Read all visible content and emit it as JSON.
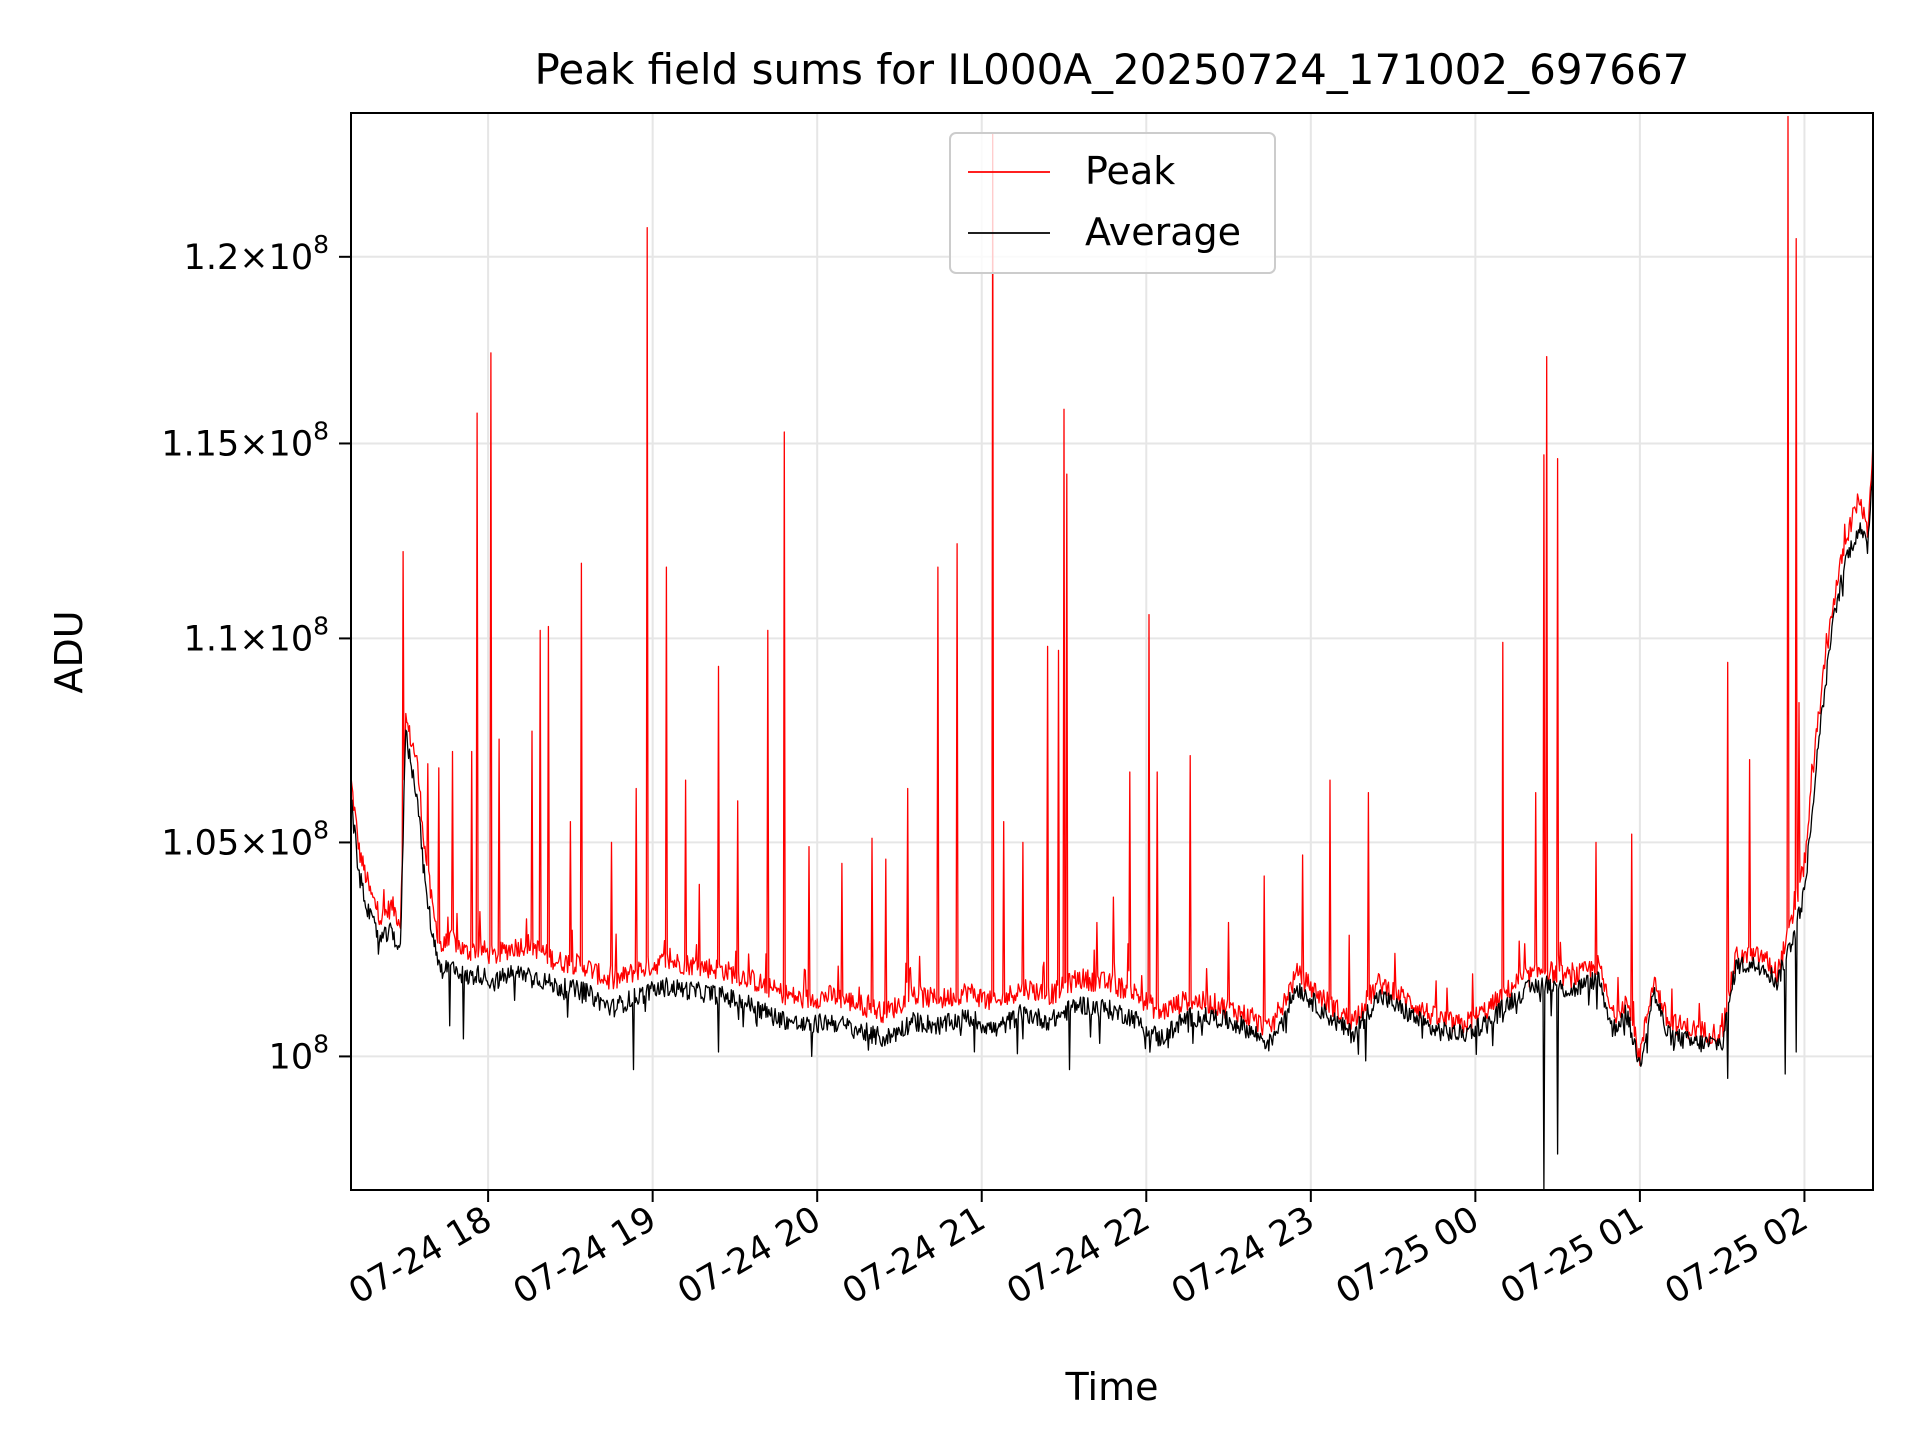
{
  "chart_data": {
    "type": "line",
    "title": "Peak field sums for IL000A_20250724_171002_697667",
    "xlabel": "Time",
    "ylabel": "ADU",
    "x_range": [
      "2025-07-24T17:10:00",
      "2025-07-25T02:25:00"
    ],
    "ylim": [
      97000000.0,
      124000000.0
    ],
    "y_scale": "log",
    "grid": true,
    "legend_position": "top-center",
    "x_ticks": [
      {
        "value": "2025-07-24T18:00:00",
        "label": "07-24 18"
      },
      {
        "value": "2025-07-24T19:00:00",
        "label": "07-24 19"
      },
      {
        "value": "2025-07-24T20:00:00",
        "label": "07-24 20"
      },
      {
        "value": "2025-07-24T21:00:00",
        "label": "07-24 21"
      },
      {
        "value": "2025-07-24T22:00:00",
        "label": "07-24 22"
      },
      {
        "value": "2025-07-24T23:00:00",
        "label": "07-24 23"
      },
      {
        "value": "2025-07-25T00:00:00",
        "label": "07-25 00"
      },
      {
        "value": "2025-07-25T01:00:00",
        "label": "07-25 01"
      },
      {
        "value": "2025-07-25T02:00:00",
        "label": "07-25 02"
      }
    ],
    "y_ticks": [
      {
        "value": 100000000.0,
        "mantissa": "",
        "exponent": "8"
      },
      {
        "value": 105000000.0,
        "mantissa": "1.05",
        "exponent": "8"
      },
      {
        "value": 110000000.0,
        "mantissa": "1.1",
        "exponent": "8"
      },
      {
        "value": 115000000.0,
        "mantissa": "1.15",
        "exponent": "8"
      },
      {
        "value": 120000000.0,
        "mantissa": "1.2",
        "exponent": "8"
      }
    ],
    "series": [
      {
        "name": "Peak",
        "color": "#ff0000",
        "points": [
          [
            "2025-07-24T17:10:00",
            106500000
          ],
          [
            "2025-07-24T17:13:00",
            104800000
          ],
          [
            "2025-07-24T17:17:00",
            103800000
          ],
          [
            "2025-07-24T17:21:00",
            103200000
          ],
          [
            "2025-07-24T17:25:00",
            103500000
          ],
          [
            "2025-07-24T17:28:00",
            103100000
          ],
          [
            "2025-07-24T17:30:00",
            108000000
          ],
          [
            "2025-07-24T17:31:00",
            107700000
          ],
          [
            "2025-07-24T17:34:00",
            107000000
          ],
          [
            "2025-07-24T17:37:00",
            104800000
          ],
          [
            "2025-07-24T17:40:00",
            103300000
          ],
          [
            "2025-07-24T17:43:00",
            102500000
          ],
          [
            "2025-07-24T17:47:00",
            102700000
          ],
          [
            "2025-07-24T17:52:00",
            102400000
          ],
          [
            "2025-07-24T17:57:00",
            102500000
          ],
          [
            "2025-07-24T18:02:00",
            102300000
          ],
          [
            "2025-07-24T18:08:00",
            102500000
          ],
          [
            "2025-07-24T18:15:00",
            102600000
          ],
          [
            "2025-07-24T18:25:00",
            102200000
          ],
          [
            "2025-07-24T18:35:00",
            102100000
          ],
          [
            "2025-07-24T18:45:00",
            101700000
          ],
          [
            "2025-07-24T18:55:00",
            102000000
          ],
          [
            "2025-07-24T19:05:00",
            102200000
          ],
          [
            "2025-07-24T19:15:00",
            102100000
          ],
          [
            "2025-07-24T19:25:00",
            102000000
          ],
          [
            "2025-07-24T19:35:00",
            101800000
          ],
          [
            "2025-07-24T19:45:00",
            101500000
          ],
          [
            "2025-07-24T19:55:00",
            101300000
          ],
          [
            "2025-07-24T20:05:00",
            101400000
          ],
          [
            "2025-07-24T20:15:00",
            101200000
          ],
          [
            "2025-07-24T20:25:00",
            101000000
          ],
          [
            "2025-07-24T20:35:00",
            101400000
          ],
          [
            "2025-07-24T20:45:00",
            101300000
          ],
          [
            "2025-07-24T20:55:00",
            101500000
          ],
          [
            "2025-07-24T21:05:00",
            101200000
          ],
          [
            "2025-07-24T21:15:00",
            101600000
          ],
          [
            "2025-07-24T21:25:00",
            101400000
          ],
          [
            "2025-07-24T21:35:00",
            101800000
          ],
          [
            "2025-07-24T21:45:00",
            101700000
          ],
          [
            "2025-07-24T21:55:00",
            101500000
          ],
          [
            "2025-07-24T22:05:00",
            101000000
          ],
          [
            "2025-07-24T22:15:00",
            101300000
          ],
          [
            "2025-07-24T22:25:00",
            101200000
          ],
          [
            "2025-07-24T22:35:00",
            101000000
          ],
          [
            "2025-07-24T22:45:00",
            100600000
          ],
          [
            "2025-07-24T22:55:00",
            101900000
          ],
          [
            "2025-07-24T23:05:00",
            101300000
          ],
          [
            "2025-07-24T23:15:00",
            100800000
          ],
          [
            "2025-07-24T23:25:00",
            101700000
          ],
          [
            "2025-07-24T23:35:00",
            101300000
          ],
          [
            "2025-07-24T23:45:00",
            100900000
          ],
          [
            "2025-07-24T23:55:00",
            100700000
          ],
          [
            "2025-07-25T00:05:00",
            101100000
          ],
          [
            "2025-07-25T00:15:00",
            101700000
          ],
          [
            "2025-07-25T00:25:00",
            102000000
          ],
          [
            "2025-07-25T00:35:00",
            101800000
          ],
          [
            "2025-07-25T00:45:00",
            102100000
          ],
          [
            "2025-07-25T00:50:00",
            100900000
          ],
          [
            "2025-07-25T00:55:00",
            101300000
          ],
          [
            "2025-07-25T01:00:00",
            100000000
          ],
          [
            "2025-07-25T01:05:00",
            101800000
          ],
          [
            "2025-07-25T01:10:00",
            100800000
          ],
          [
            "2025-07-25T01:20:00",
            100600000
          ],
          [
            "2025-07-25T01:30:00",
            100500000
          ],
          [
            "2025-07-25T01:35:00",
            102300000
          ],
          [
            "2025-07-25T01:45:00",
            102300000
          ],
          [
            "2025-07-25T01:50:00",
            101900000
          ],
          [
            "2025-07-25T01:55:00",
            103000000
          ],
          [
            "2025-07-25T02:00:00",
            104500000
          ],
          [
            "2025-07-25T02:05:00",
            108000000
          ],
          [
            "2025-07-25T02:10:00",
            110700000
          ],
          [
            "2025-07-25T02:15:00",
            112500000
          ],
          [
            "2025-07-25T02:20:00",
            113600000
          ],
          [
            "2025-07-25T02:23:00",
            112700000
          ],
          [
            "2025-07-25T02:25:00",
            115000000
          ]
        ]
      },
      {
        "name": "Average",
        "color": "#000000",
        "points": [
          [
            "2025-07-24T17:10:00",
            106000000
          ],
          [
            "2025-07-24T17:13:00",
            104200000
          ],
          [
            "2025-07-24T17:17:00",
            103200000
          ],
          [
            "2025-07-24T17:21:00",
            102700000
          ],
          [
            "2025-07-24T17:25:00",
            102900000
          ],
          [
            "2025-07-24T17:28:00",
            102400000
          ],
          [
            "2025-07-24T17:30:00",
            107900000
          ],
          [
            "2025-07-24T17:31:00",
            107200000
          ],
          [
            "2025-07-24T17:34:00",
            106200000
          ],
          [
            "2025-07-24T17:37:00",
            104000000
          ],
          [
            "2025-07-24T17:40:00",
            102700000
          ],
          [
            "2025-07-24T17:43:00",
            102000000
          ],
          [
            "2025-07-24T17:47:00",
            102100000
          ],
          [
            "2025-07-24T17:52:00",
            101800000
          ],
          [
            "2025-07-24T17:57:00",
            101900000
          ],
          [
            "2025-07-24T18:02:00",
            101700000
          ],
          [
            "2025-07-24T18:08:00",
            101900000
          ],
          [
            "2025-07-24T18:15:00",
            101900000
          ],
          [
            "2025-07-24T18:25:00",
            101600000
          ],
          [
            "2025-07-24T18:35:00",
            101500000
          ],
          [
            "2025-07-24T18:45:00",
            101100000
          ],
          [
            "2025-07-24T18:55:00",
            101400000
          ],
          [
            "2025-07-24T19:05:00",
            101600000
          ],
          [
            "2025-07-24T19:15:00",
            101500000
          ],
          [
            "2025-07-24T19:25:00",
            101400000
          ],
          [
            "2025-07-24T19:35:00",
            101200000
          ],
          [
            "2025-07-24T19:45:00",
            100900000
          ],
          [
            "2025-07-24T19:55:00",
            100700000
          ],
          [
            "2025-07-24T20:05:00",
            100800000
          ],
          [
            "2025-07-24T20:15:00",
            100600000
          ],
          [
            "2025-07-24T20:25:00",
            100400000
          ],
          [
            "2025-07-24T20:35:00",
            100800000
          ],
          [
            "2025-07-24T20:45:00",
            100700000
          ],
          [
            "2025-07-24T20:55:00",
            100900000
          ],
          [
            "2025-07-24T21:05:00",
            100600000
          ],
          [
            "2025-07-24T21:15:00",
            101000000
          ],
          [
            "2025-07-24T21:25:00",
            100800000
          ],
          [
            "2025-07-24T21:35:00",
            101200000
          ],
          [
            "2025-07-24T21:45:00",
            101100000
          ],
          [
            "2025-07-24T21:55:00",
            100900000
          ],
          [
            "2025-07-24T22:05:00",
            100400000
          ],
          [
            "2025-07-24T22:15:00",
            100900000
          ],
          [
            "2025-07-24T22:25:00",
            100900000
          ],
          [
            "2025-07-24T22:35:00",
            100700000
          ],
          [
            "2025-07-24T22:45:00",
            100300000
          ],
          [
            "2025-07-24T22:55:00",
            101600000
          ],
          [
            "2025-07-24T23:05:00",
            101000000
          ],
          [
            "2025-07-24T23:15:00",
            100500000
          ],
          [
            "2025-07-24T23:25:00",
            101400000
          ],
          [
            "2025-07-24T23:35:00",
            101000000
          ],
          [
            "2025-07-24T23:45:00",
            100600000
          ],
          [
            "2025-07-24T23:55:00",
            100500000
          ],
          [
            "2025-07-25T00:05:00",
            100800000
          ],
          [
            "2025-07-25T00:15:00",
            101400000
          ],
          [
            "2025-07-25T00:25:00",
            101700000
          ],
          [
            "2025-07-25T00:35:00",
            101500000
          ],
          [
            "2025-07-25T00:45:00",
            101800000
          ],
          [
            "2025-07-25T00:50:00",
            100600000
          ],
          [
            "2025-07-25T00:55:00",
            101000000
          ],
          [
            "2025-07-25T01:00:00",
            99800000
          ],
          [
            "2025-07-25T01:05:00",
            101500000
          ],
          [
            "2025-07-25T01:10:00",
            100500000
          ],
          [
            "2025-07-25T01:20:00",
            100300000
          ],
          [
            "2025-07-25T01:30:00",
            100300000
          ],
          [
            "2025-07-25T01:35:00",
            102100000
          ],
          [
            "2025-07-25T01:45:00",
            102100000
          ],
          [
            "2025-07-25T01:50:00",
            101700000
          ],
          [
            "2025-07-25T01:55:00",
            102600000
          ],
          [
            "2025-07-25T02:00:00",
            103800000
          ],
          [
            "2025-07-25T02:05:00",
            107300000
          ],
          [
            "2025-07-25T02:10:00",
            110200000
          ],
          [
            "2025-07-25T02:15:00",
            112000000
          ],
          [
            "2025-07-25T02:20:00",
            112800000
          ],
          [
            "2025-07-25T02:23:00",
            112300000
          ],
          [
            "2025-07-25T02:25:00",
            114500000
          ]
        ]
      }
    ],
    "peak_spikes": [
      [
        "2025-07-24T17:29:00",
        112200000
      ],
      [
        "2025-07-24T17:38:00",
        106900000
      ],
      [
        "2025-07-24T17:42:00",
        106800000
      ],
      [
        "2025-07-24T17:47:00",
        107200000
      ],
      [
        "2025-07-24T17:54:00",
        107200000
      ],
      [
        "2025-07-24T17:56:00",
        115800000
      ],
      [
        "2025-07-24T18:01:00",
        117400000
      ],
      [
        "2025-07-24T18:04:00",
        107500000
      ],
      [
        "2025-07-24T18:16:00",
        107700000
      ],
      [
        "2025-07-24T18:19:00",
        110200000
      ],
      [
        "2025-07-24T18:22:00",
        110300000
      ],
      [
        "2025-07-24T18:30:00",
        105500000
      ],
      [
        "2025-07-24T18:34:00",
        111900000
      ],
      [
        "2025-07-24T18:45:00",
        105000000
      ],
      [
        "2025-07-24T18:54:00",
        106300000
      ],
      [
        "2025-07-24T18:58:00",
        120800000
      ],
      [
        "2025-07-24T19:05:00",
        111800000
      ],
      [
        "2025-07-24T19:12:00",
        106500000
      ],
      [
        "2025-07-24T19:17:00",
        104000000
      ],
      [
        "2025-07-24T19:24:00",
        109300000
      ],
      [
        "2025-07-24T19:31:00",
        106000000
      ],
      [
        "2025-07-24T19:42:00",
        110200000
      ],
      [
        "2025-07-24T19:48:00",
        115300000
      ],
      [
        "2025-07-24T19:57:00",
        104900000
      ],
      [
        "2025-07-24T20:09:00",
        104500000
      ],
      [
        "2025-07-24T20:20:00",
        105100000
      ],
      [
        "2025-07-24T20:25:00",
        104600000
      ],
      [
        "2025-07-24T20:33:00",
        106300000
      ],
      [
        "2025-07-24T20:44:00",
        111800000
      ],
      [
        "2025-07-24T20:51:00",
        112400000
      ],
      [
        "2025-07-24T21:04:00",
        123400000
      ],
      [
        "2025-07-24T21:08:00",
        105500000
      ],
      [
        "2025-07-24T21:15:00",
        105000000
      ],
      [
        "2025-07-24T21:24:00",
        109800000
      ],
      [
        "2025-07-24T21:28:00",
        109700000
      ],
      [
        "2025-07-24T21:30:00",
        115900000
      ],
      [
        "2025-07-24T21:31:00",
        114200000
      ],
      [
        "2025-07-24T21:42:00",
        103100000
      ],
      [
        "2025-07-24T21:48:00",
        103700000
      ],
      [
        "2025-07-24T21:54:00",
        106700000
      ],
      [
        "2025-07-24T22:01:00",
        110600000
      ],
      [
        "2025-07-24T22:04:00",
        106700000
      ],
      [
        "2025-07-24T22:16:00",
        107100000
      ],
      [
        "2025-07-24T22:30:00",
        103100000
      ],
      [
        "2025-07-24T22:43:00",
        104200000
      ],
      [
        "2025-07-24T22:57:00",
        104700000
      ],
      [
        "2025-07-24T23:07:00",
        106500000
      ],
      [
        "2025-07-24T23:14:00",
        102800000
      ],
      [
        "2025-07-24T23:21:00",
        106200000
      ],
      [
        "2025-07-24T23:59:00",
        101900000
      ],
      [
        "2025-07-25T00:10:00",
        109900000
      ],
      [
        "2025-07-25T00:22:00",
        106200000
      ],
      [
        "2025-07-25T00:25:00",
        114700000
      ],
      [
        "2025-07-25T00:26:00",
        117300000
      ],
      [
        "2025-07-25T00:30:00",
        114600000
      ],
      [
        "2025-07-25T00:44:00",
        105000000
      ],
      [
        "2025-07-25T00:57:00",
        105200000
      ],
      [
        "2025-07-25T01:32:00",
        109400000
      ],
      [
        "2025-07-25T01:40:00",
        107000000
      ],
      [
        "2025-07-25T01:54:00",
        123900000
      ],
      [
        "2025-07-25T01:57:00",
        120500000
      ],
      [
        "2025-07-25T01:58:00",
        108400000
      ]
    ],
    "average_dips": [
      [
        "2025-07-24T17:46:00",
        100700000
      ],
      [
        "2025-07-24T17:51:00",
        100400000
      ],
      [
        "2025-07-24T18:53:00",
        99700000
      ],
      [
        "2025-07-24T19:24:00",
        100100000
      ],
      [
        "2025-07-24T19:58:00",
        100000000
      ],
      [
        "2025-07-24T20:20:00",
        100300000
      ],
      [
        "2025-07-24T21:15:00",
        100400000
      ],
      [
        "2025-07-24T21:32:00",
        99700000
      ],
      [
        "2025-07-24T21:43:00",
        100300000
      ],
      [
        "2025-07-24T22:08:00",
        100200000
      ],
      [
        "2025-07-24T22:17:00",
        100300000
      ],
      [
        "2025-07-24T23:20:00",
        99900000
      ],
      [
        "2025-07-25T00:25:00",
        97000000
      ],
      [
        "2025-07-25T00:30:00",
        97800000
      ],
      [
        "2025-07-25T01:00:00",
        99900000
      ],
      [
        "2025-07-25T01:32:00",
        99500000
      ],
      [
        "2025-07-25T01:53:00",
        99600000
      ],
      [
        "2025-07-25T01:57:00",
        100100000
      ]
    ]
  }
}
